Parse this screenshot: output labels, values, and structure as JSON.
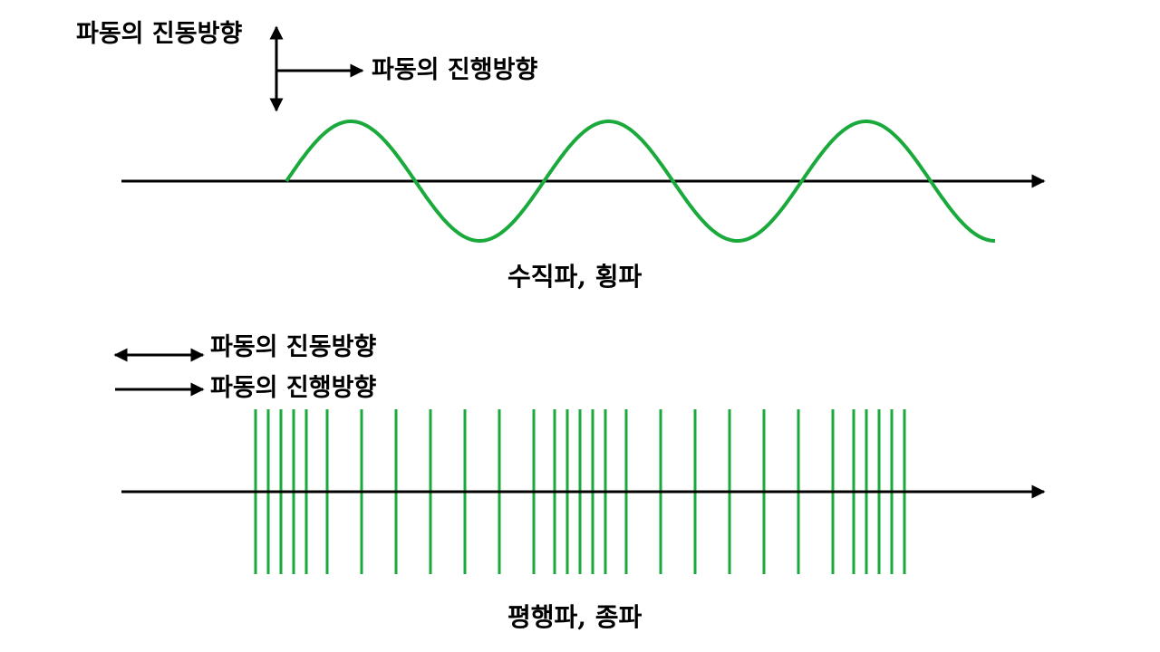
{
  "colors": {
    "wave": "#1aaa3c",
    "axis": "#000000",
    "text": "#000000"
  },
  "transverse": {
    "vibration_label": "파동의 진동방향",
    "propagation_label": "파동의 진행방향",
    "caption": "수직파, 횡파",
    "wave_shape": "sine",
    "wave_cycles": 2.75
  },
  "longitudinal": {
    "vibration_label": "파동의 진동방향",
    "propagation_label": "파동의 진행방향",
    "caption": "평행파, 종파",
    "line_pattern": "compressions and rarefactions",
    "line_count": 29
  }
}
